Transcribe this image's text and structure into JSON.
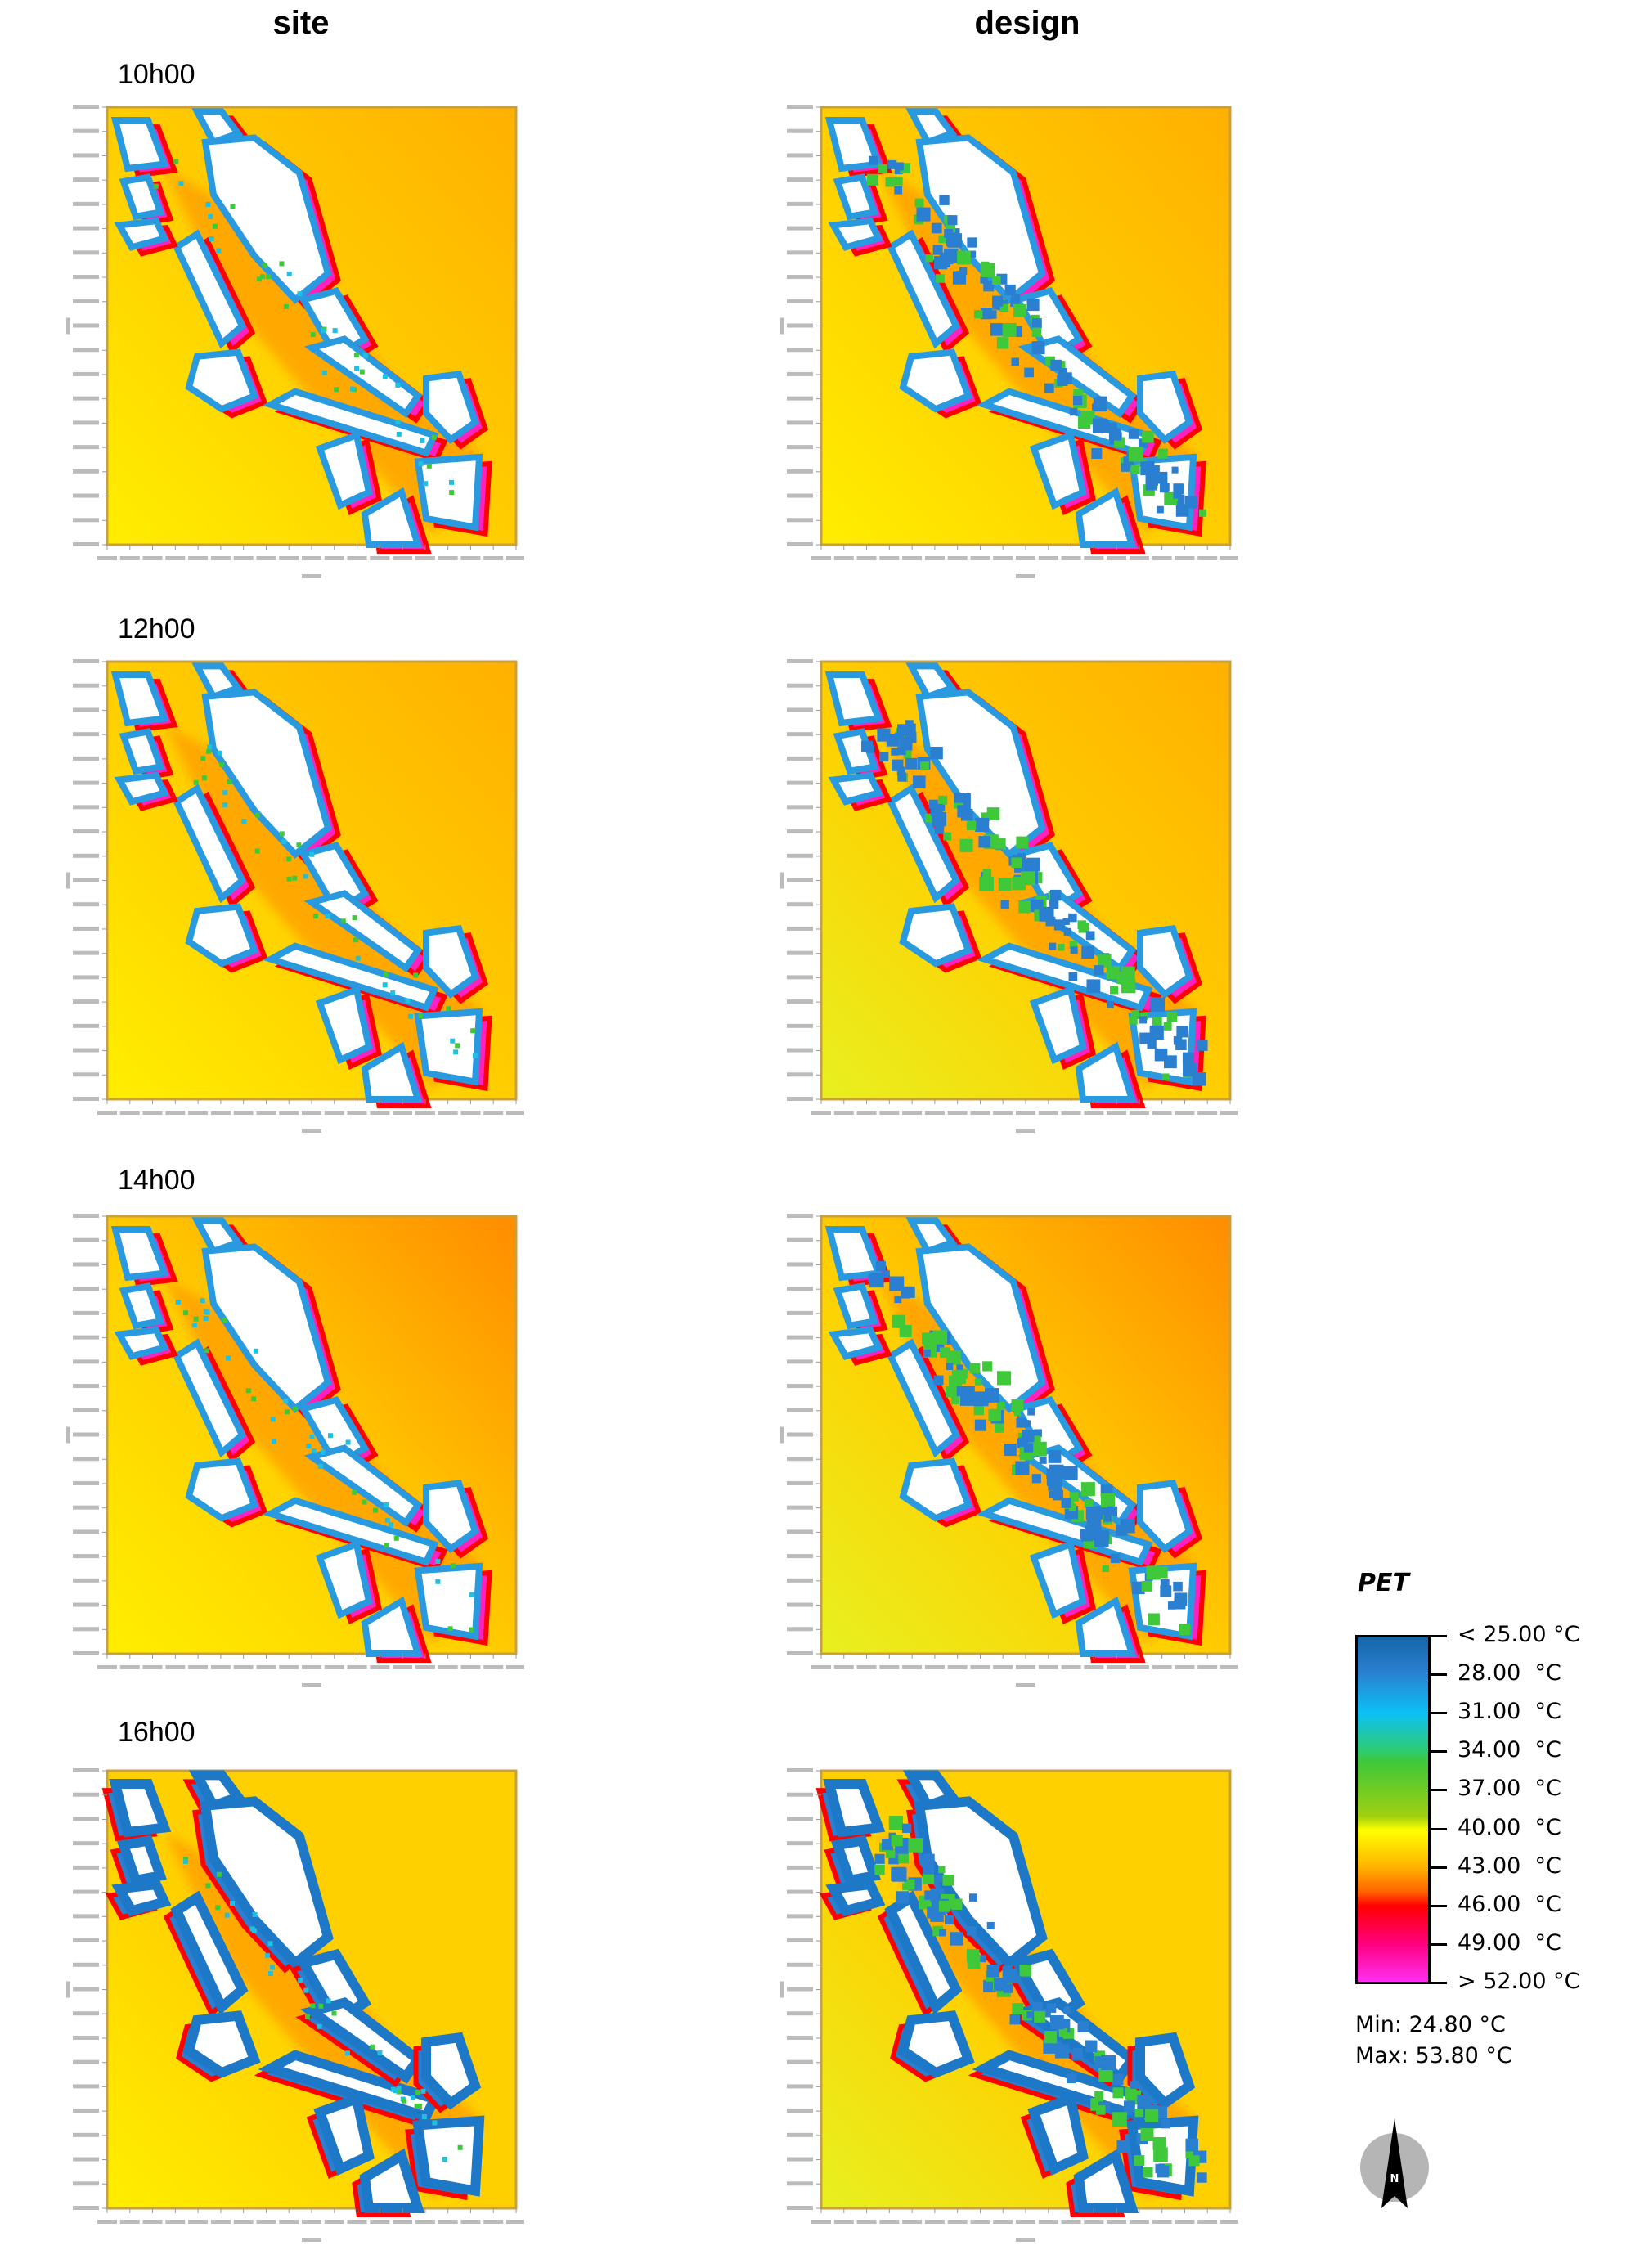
{
  "columns": [
    "site",
    "design"
  ],
  "rows": [
    {
      "time": "10h00"
    },
    {
      "time": "12h00"
    },
    {
      "time": "14h00"
    },
    {
      "time": "16h00"
    }
  ],
  "legend": {
    "title": "PET",
    "ticks": [
      "< 25.00 °C",
      "28.00  °C",
      "31.00  °C",
      "34.00  °C",
      "37.00  °C",
      "40.00  °C",
      "43.00  °C",
      "46.00  °C",
      "49.00  °C",
      "> 52.00 °C"
    ],
    "min": "Min: 24.80 °C",
    "max": "Max: 53.80 °C",
    "colors": [
      "#1565a8",
      "#0cc0f5",
      "#3ec83a",
      "#ffff00",
      "#ff8c00",
      "#ff0000",
      "#ff30f0"
    ]
  },
  "north_arrow": {
    "label": "N",
    "icon": "north-arrow-icon"
  }
}
